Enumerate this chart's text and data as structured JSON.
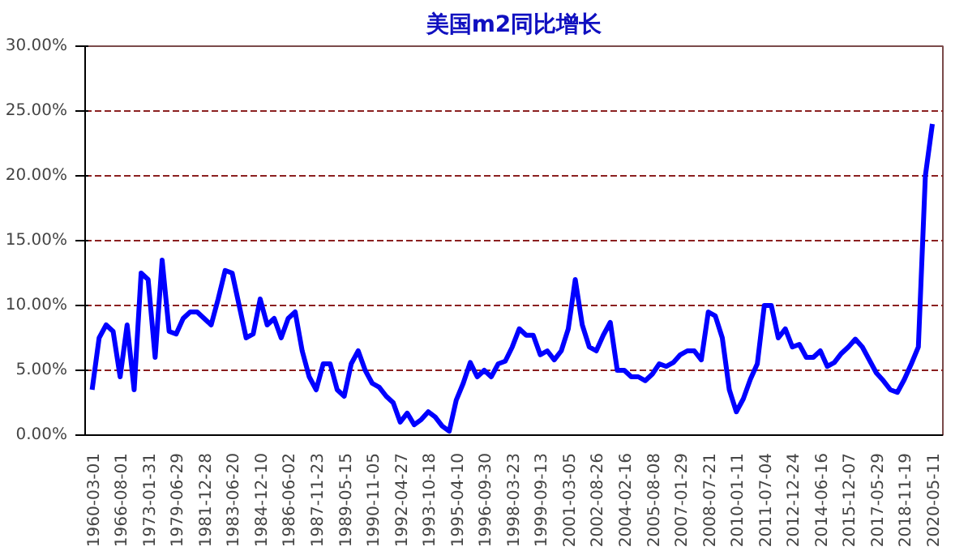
{
  "chart_data": {
    "type": "line",
    "title": "美国m2同比增长",
    "categories": [
      "1960-03-01",
      null,
      null,
      null,
      "1966-08-01",
      null,
      null,
      null,
      "1973-01-31",
      null,
      null,
      null,
      "1979-06-29",
      null,
      null,
      null,
      "1981-12-28",
      null,
      null,
      null,
      "1983-06-20",
      null,
      null,
      null,
      "1984-12-10",
      null,
      null,
      null,
      "1986-06-02",
      null,
      null,
      null,
      "1987-11-23",
      null,
      null,
      null,
      "1989-05-15",
      null,
      null,
      null,
      "1990-11-05",
      null,
      null,
      null,
      "1992-04-27",
      null,
      null,
      null,
      "1993-10-18",
      null,
      null,
      null,
      "1995-04-10",
      null,
      null,
      null,
      "1996-09-30",
      null,
      null,
      null,
      "1998-03-23",
      null,
      null,
      null,
      "1999-09-13",
      null,
      null,
      null,
      "2001-03-05",
      null,
      null,
      null,
      "2002-08-26",
      null,
      null,
      null,
      "2004-02-16",
      null,
      null,
      null,
      "2005-08-08",
      null,
      null,
      null,
      "2007-01-29",
      null,
      null,
      null,
      "2008-07-21",
      null,
      null,
      null,
      "2010-01-11",
      null,
      null,
      null,
      "2011-07-04",
      null,
      null,
      null,
      "2012-12-24",
      null,
      null,
      null,
      "2014-06-16",
      null,
      null,
      null,
      "2015-12-07",
      null,
      null,
      null,
      "2017-05-29",
      null,
      null,
      null,
      "2018-11-19",
      null,
      null,
      null,
      "2020-05-11"
    ],
    "series": [
      {
        "color": "#0000ff",
        "values": [
          3.5,
          7.5,
          8.5,
          8.0,
          4.5,
          8.5,
          3.5,
          12.5,
          12,
          6,
          13.5,
          8,
          7.8,
          9,
          9.5,
          9.5,
          9,
          8.5,
          10.5,
          12.7,
          12.5,
          10,
          7.5,
          7.8,
          10.5,
          8.5,
          9,
          7.5,
          9,
          9.5,
          6.5,
          4.5,
          3.5,
          5.5,
          5.5,
          3.5,
          3,
          5.5,
          6.5,
          5,
          4,
          3.7,
          3.0,
          2.5,
          1.0,
          1.7,
          0.8,
          1.2,
          1.8,
          1.4,
          0.7,
          0.3,
          2.7,
          4.0,
          5.6,
          4.5,
          5.0,
          4.5,
          5.5,
          5.7,
          6.8,
          8.2,
          7.7,
          7.7,
          6.2,
          6.5,
          5.8,
          6.5,
          8.2,
          12.0,
          8.5,
          6.8,
          6.5,
          7.7,
          8.7,
          5.0,
          5.0,
          4.5,
          4.5,
          4.2,
          4.7,
          5.5,
          5.3,
          5.6,
          6.2,
          6.5,
          6.5,
          5.8,
          9.5,
          9.2,
          7.5,
          3.5,
          1.8,
          2.8,
          4.3,
          5.5,
          10,
          10,
          7.5,
          8.2,
          6.8,
          7.0,
          6.0,
          6.0,
          6.5,
          5.3,
          5.6,
          6.3,
          6.8,
          7.4,
          6.8,
          5.8,
          4.8,
          4.2,
          3.5,
          3.3,
          4.3,
          5.5,
          6.8,
          20,
          24
        ]
      }
    ],
    "ylim": [
      0,
      30
    ],
    "yticks": [
      {
        "value": 0,
        "label": "0.00%"
      },
      {
        "value": 5,
        "label": "5.00%"
      },
      {
        "value": 10,
        "label": "10.00%"
      },
      {
        "value": 15,
        "label": "15.00%"
      },
      {
        "value": 20,
        "label": "20.00%"
      },
      {
        "value": 25,
        "label": "25.00%"
      },
      {
        "value": 30,
        "label": "30.00%"
      }
    ],
    "grid": "y",
    "marker": "none",
    "line_style": "solid"
  }
}
